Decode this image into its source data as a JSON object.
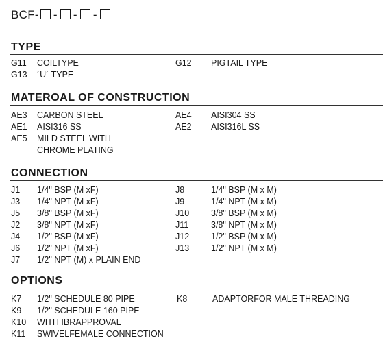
{
  "model": {
    "prefix": "BCF-",
    "separator": "-"
  },
  "type": {
    "title": "TYPE",
    "left": [
      {
        "code": "G11",
        "desc": "COILTYPE"
      },
      {
        "code": "G13",
        "desc": "´U´ TYPE"
      }
    ],
    "right": [
      {
        "code": "G12",
        "desc": "PIGTAIL TYPE"
      }
    ]
  },
  "material": {
    "title": "MATEROAL OF CONSTRUCTION",
    "left": [
      {
        "code": "AE3",
        "desc": "CARBON STEEL"
      },
      {
        "code": "AE1",
        "desc": "AISI316 SS"
      },
      {
        "code": "AE5",
        "desc": "MILD STEEL WITH"
      },
      {
        "code": "",
        "desc": "CHROME PLATING"
      }
    ],
    "right": [
      {
        "code": "AE4",
        "desc": "AISI304 SS"
      },
      {
        "code": "AE2",
        "desc": "AISI316L SS"
      }
    ]
  },
  "connection": {
    "title": "CONNECTION",
    "left": [
      {
        "code": "J1",
        "desc": "1/4\" BSP (M xF)"
      },
      {
        "code": "J3",
        "desc": "1/4\" NPT (M xF)"
      },
      {
        "code": "J5",
        "desc": "3/8\" BSP (M xF)"
      },
      {
        "code": "J2",
        "desc": "3/8\" NPT (M xF)"
      },
      {
        "code": "J4",
        "desc": "1/2\" BSP (M xF)"
      },
      {
        "code": "J6",
        "desc": "1/2\" NPT (M xF)"
      },
      {
        "code": "J7",
        "desc": "1/2\" NPT (M) x PLAIN END"
      }
    ],
    "right": [
      {
        "code": "J8",
        "desc": "1/4\" BSP (M x M)"
      },
      {
        "code": "J9",
        "desc": "1/4\" NPT (M x M)"
      },
      {
        "code": "J10",
        "desc": "3/8\" BSP (M x M)"
      },
      {
        "code": "J11",
        "desc": "3/8\" NPT (M x M)"
      },
      {
        "code": "J12",
        "desc": "1/2\" BSP (M x M)"
      },
      {
        "code": "J13",
        "desc": "1/2\" NPT (M x M)"
      }
    ]
  },
  "options": {
    "title": "OPTIONS",
    "left": [
      {
        "code": "K7",
        "desc": "1/2\" SCHEDULE 80 PIPE"
      },
      {
        "code": "K9",
        "desc": "1/2\" SCHEDULE 160 PIPE"
      },
      {
        "code": "K10",
        "desc": "WITH IBRAPPROVAL"
      },
      {
        "code": "K11",
        "desc": "SWIVELFEMALE CONNECTION"
      }
    ],
    "right": [
      {
        "code": "K8",
        "desc": "ADAPTORFOR MALE THREADING"
      }
    ]
  }
}
